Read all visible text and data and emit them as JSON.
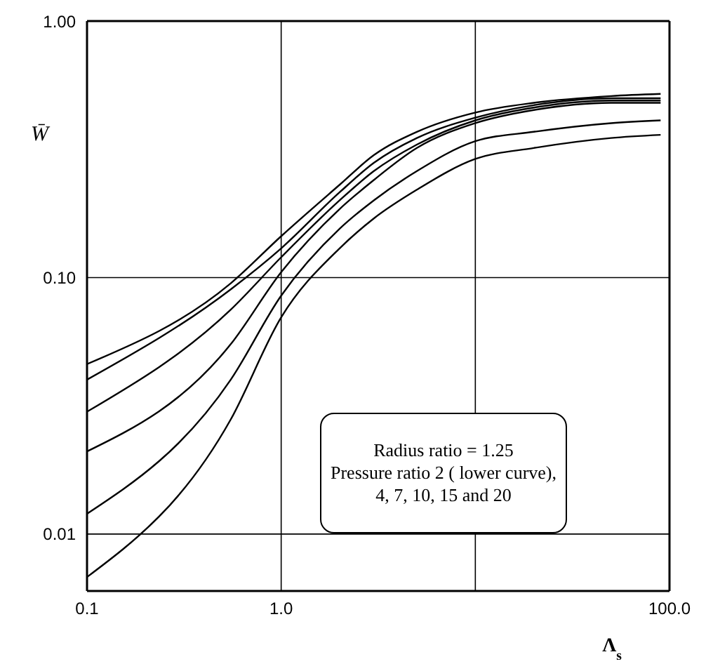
{
  "chart_data": {
    "type": "line",
    "xlabel": "Λ$_{s}$",
    "ylabel": "W̄",
    "x": [
      0.1,
      0.55,
      1,
      2,
      3,
      5,
      10,
      20,
      50,
      90
    ],
    "series": [
      {
        "color": "#000000",
        "values": [
          0.046,
          0.095,
          0.145,
          0.23,
          0.3,
          0.37,
          0.44,
          0.48,
          0.51,
          0.52
        ]
      },
      {
        "color": "#000000",
        "values": [
          0.04,
          0.09,
          0.13,
          0.215,
          0.28,
          0.35,
          0.42,
          0.47,
          0.5,
          0.5
        ]
      },
      {
        "color": "#000000",
        "values": [
          0.03,
          0.075,
          0.12,
          0.2,
          0.26,
          0.33,
          0.41,
          0.46,
          0.49,
          0.49
        ]
      },
      {
        "color": "#000000",
        "values": [
          0.021,
          0.055,
          0.105,
          0.185,
          0.24,
          0.32,
          0.4,
          0.45,
          0.48,
          0.48
        ]
      },
      {
        "color": "#000000",
        "values": [
          0.012,
          0.04,
          0.085,
          0.155,
          0.2,
          0.26,
          0.34,
          0.37,
          0.4,
          0.41
        ]
      },
      {
        "color": "#000000",
        "values": [
          0.0068,
          0.028,
          0.07,
          0.13,
          0.17,
          0.22,
          0.29,
          0.32,
          0.35,
          0.36
        ]
      }
    ],
    "log": "xy",
    "xlim": [
      0.1,
      100
    ],
    "ylim": [
      0.006,
      1
    ],
    "xticks": [
      {
        "value": 0.1,
        "label": "0.1"
      },
      {
        "value": 1,
        "label": "1.0"
      },
      {
        "value": 10,
        "label": null
      },
      {
        "value": 100,
        "label": "100.0"
      }
    ],
    "yticks": [
      {
        "value": 0.01,
        "label": "0.01"
      },
      {
        "value": 0.1,
        "label": "0.10"
      },
      {
        "value": 1,
        "label": "1.00"
      }
    ],
    "grid": true,
    "marker": "none",
    "line_style": "solid",
    "annotations": [
      "Radius ratio = 1.25",
      "Pressure ratio 2 ( lower curve),",
      "4, 7, 10, 15 and 20"
    ]
  }
}
